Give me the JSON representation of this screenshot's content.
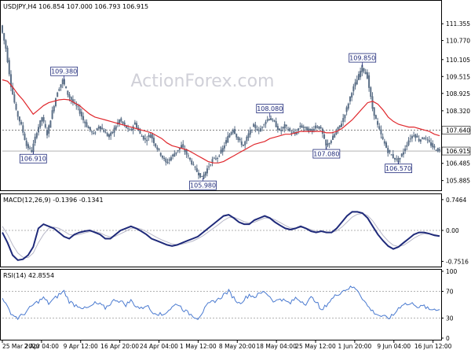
{
  "header": {
    "main_title": "USDJPY,H4  106.854 107.000 106.793 106.915",
    "macd_title": "MACD(12,26,9) -0.1396 -0.1341",
    "rsi_title": "RSI(14) 42.8554",
    "watermark": "ActionForex.com"
  },
  "colors": {
    "background": "#ffffff",
    "border": "#000000",
    "candle": "#5a6e86",
    "ma": "#e0282d",
    "macd": "#1f2a7a",
    "signal": "#b8b8c8",
    "rsi": "#4a7ad0",
    "label_border": "#1f2a7a",
    "price_tag_bg": "#ffffff",
    "level_line": "#555555",
    "watermark": "#d0d0d8"
  },
  "chart_data": [
    {
      "type": "candlestick",
      "panel": "price",
      "symbol": "USDJPY",
      "timeframe": "H4",
      "ylim": [
        105.6,
        111.8
      ],
      "y_ticks": [
        "111.355",
        "110.770",
        "110.105",
        "109.515",
        "108.925",
        "108.320",
        "107.640",
        "106.915",
        "106.485",
        "105.885"
      ],
      "x_ticks": [
        "25 Mar 2020",
        "2 Apr 04:00",
        "9 Apr 12:00",
        "16 Apr 20:00",
        "24 Apr 04:00",
        "1 May 12:00",
        "8 May 20:00",
        "18 May 04:00",
        "25 May 12:00",
        "1 Jun 20:00",
        "9 Jun 04:00",
        "16 Jun 12:00"
      ],
      "close_series": [
        111.3,
        110.5,
        109.2,
        108.3,
        107.8,
        107.1,
        106.91,
        107.6,
        108.1,
        107.5,
        108.3,
        109.0,
        109.38,
        108.9,
        108.6,
        108.4,
        108.0,
        107.7,
        107.5,
        107.8,
        107.6,
        107.4,
        107.7,
        108.0,
        107.8,
        107.6,
        107.9,
        107.5,
        107.3,
        107.5,
        107.1,
        106.8,
        106.5,
        106.7,
        106.9,
        107.1,
        106.8,
        106.5,
        106.2,
        105.98,
        106.3,
        106.6,
        106.7,
        107.0,
        107.4,
        107.7,
        107.3,
        107.1,
        107.5,
        107.8,
        107.6,
        107.9,
        108.08,
        107.9,
        107.6,
        107.8,
        107.6,
        107.5,
        107.8,
        107.7,
        107.6,
        107.8,
        107.7,
        107.08,
        107.3,
        107.6,
        107.9,
        108.4,
        109.0,
        109.4,
        109.85,
        109.5,
        108.4,
        107.8,
        107.3,
        106.9,
        106.7,
        106.57,
        106.9,
        107.3,
        107.5,
        107.3,
        107.4,
        107.2,
        107.0,
        106.915
      ],
      "moving_average": [
        109.4,
        109.35,
        109.15,
        108.9,
        108.7,
        108.45,
        108.2,
        108.35,
        108.5,
        108.6,
        108.65,
        108.7,
        108.72,
        108.7,
        108.6,
        108.5,
        108.35,
        108.2,
        108.1,
        108.05,
        108.0,
        107.95,
        107.9,
        107.85,
        107.8,
        107.75,
        107.7,
        107.65,
        107.6,
        107.55,
        107.45,
        107.35,
        107.2,
        107.1,
        107.05,
        107.0,
        106.95,
        106.85,
        106.75,
        106.65,
        106.55,
        106.5,
        106.5,
        106.55,
        106.65,
        106.75,
        106.85,
        106.95,
        107.05,
        107.15,
        107.2,
        107.25,
        107.35,
        107.4,
        107.45,
        107.5,
        107.5,
        107.55,
        107.6,
        107.6,
        107.6,
        107.6,
        107.6,
        107.55,
        107.55,
        107.6,
        107.7,
        107.85,
        108.0,
        108.2,
        108.4,
        108.6,
        108.65,
        108.55,
        108.35,
        108.1,
        107.95,
        107.85,
        107.8,
        107.75,
        107.75,
        107.7,
        107.65,
        107.6,
        107.5,
        107.45
      ],
      "reference_level": 107.64,
      "current_price": 106.915,
      "annotations": [
        {
          "label": "109.380",
          "index": 12,
          "value": 109.38,
          "side": "above"
        },
        {
          "label": "106.910",
          "index": 6,
          "value": 106.91,
          "side": "below"
        },
        {
          "label": "105.980",
          "index": 39,
          "value": 105.98,
          "side": "below"
        },
        {
          "label": "108.080",
          "index": 52,
          "value": 108.08,
          "side": "above"
        },
        {
          "label": "107.080",
          "index": 63,
          "value": 107.08,
          "side": "below"
        },
        {
          "label": "109.850",
          "index": 70,
          "value": 109.85,
          "side": "above"
        },
        {
          "label": "106.570",
          "index": 77,
          "value": 106.57,
          "side": "below"
        }
      ]
    },
    {
      "type": "line",
      "panel": "macd",
      "name": "MACD(12,26,9)",
      "ylim": [
        -0.82,
        0.82
      ],
      "y_ticks": [
        "0.7464",
        "0.00",
        "-0.7516"
      ],
      "macd": [
        -0.05,
        -0.3,
        -0.6,
        -0.72,
        -0.7,
        -0.6,
        -0.4,
        0.05,
        0.15,
        0.1,
        0.05,
        -0.05,
        -0.15,
        -0.2,
        -0.1,
        -0.05,
        -0.02,
        0.0,
        -0.05,
        -0.1,
        -0.2,
        -0.2,
        -0.1,
        0.0,
        0.05,
        0.1,
        0.05,
        -0.02,
        -0.1,
        -0.2,
        -0.25,
        -0.3,
        -0.35,
        -0.38,
        -0.35,
        -0.3,
        -0.25,
        -0.2,
        -0.15,
        -0.05,
        0.05,
        0.15,
        0.25,
        0.35,
        0.38,
        0.3,
        0.2,
        0.15,
        0.15,
        0.25,
        0.3,
        0.35,
        0.3,
        0.2,
        0.12,
        0.05,
        0.02,
        0.05,
        0.1,
        0.05,
        -0.02,
        -0.05,
        -0.02,
        -0.05,
        -0.05,
        0.05,
        0.2,
        0.35,
        0.45,
        0.45,
        0.42,
        0.3,
        0.1,
        -0.1,
        -0.25,
        -0.38,
        -0.45,
        -0.4,
        -0.3,
        -0.2,
        -0.1,
        -0.05,
        -0.05,
        -0.08,
        -0.12,
        -0.14
      ],
      "signal": [
        0.1,
        -0.1,
        -0.35,
        -0.55,
        -0.65,
        -0.66,
        -0.55,
        -0.3,
        -0.1,
        0.05,
        0.08,
        0.05,
        -0.02,
        -0.1,
        -0.12,
        -0.1,
        -0.06,
        -0.03,
        -0.03,
        -0.06,
        -0.12,
        -0.16,
        -0.14,
        -0.08,
        -0.02,
        0.05,
        0.06,
        0.03,
        -0.03,
        -0.1,
        -0.17,
        -0.23,
        -0.28,
        -0.33,
        -0.35,
        -0.33,
        -0.3,
        -0.26,
        -0.2,
        -0.13,
        -0.04,
        0.05,
        0.14,
        0.24,
        0.31,
        0.32,
        0.27,
        0.21,
        0.18,
        0.2,
        0.25,
        0.3,
        0.3,
        0.26,
        0.19,
        0.12,
        0.06,
        0.05,
        0.07,
        0.06,
        0.02,
        -0.02,
        -0.03,
        -0.04,
        -0.05,
        -0.01,
        0.08,
        0.2,
        0.32,
        0.39,
        0.41,
        0.36,
        0.23,
        0.05,
        -0.12,
        -0.26,
        -0.36,
        -0.39,
        -0.36,
        -0.28,
        -0.19,
        -0.12,
        -0.08,
        -0.08,
        -0.1,
        -0.13
      ]
    },
    {
      "type": "line",
      "panel": "rsi",
      "name": "RSI(14)",
      "ylim": [
        0,
        100
      ],
      "y_ticks": [
        "100",
        "70",
        "30",
        "0"
      ],
      "levels": [
        70,
        30
      ],
      "values": [
        62,
        45,
        35,
        30,
        35,
        42,
        50,
        55,
        60,
        52,
        58,
        65,
        70,
        55,
        50,
        48,
        44,
        46,
        52,
        50,
        45,
        52,
        58,
        55,
        50,
        56,
        48,
        44,
        50,
        40,
        38,
        34,
        40,
        46,
        52,
        44,
        38,
        34,
        30,
        40,
        50,
        55,
        58,
        65,
        70,
        60,
        52,
        58,
        65,
        62,
        66,
        70,
        62,
        54,
        60,
        55,
        52,
        60,
        56,
        52,
        60,
        56,
        40,
        50,
        58,
        65,
        70,
        74,
        76,
        73,
        60,
        48,
        40,
        35,
        32,
        30,
        34,
        45,
        52,
        50,
        52,
        46,
        48,
        42,
        44,
        42.8554
      ]
    }
  ]
}
